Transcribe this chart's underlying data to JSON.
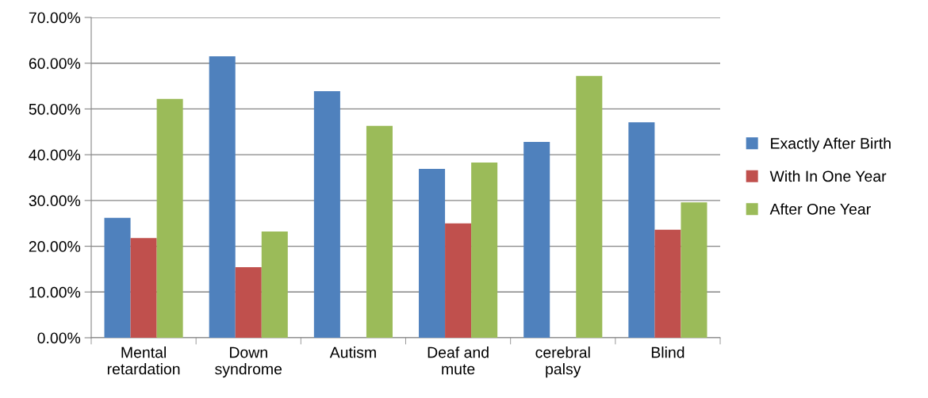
{
  "chart_data": {
    "type": "bar",
    "categories": [
      "Mental\nretardation",
      "Down\nsyndrome",
      "Autism",
      "Deaf and\nmute",
      "cerebral\npalsy",
      "Blind"
    ],
    "series": [
      {
        "name": "Exactly After Birth",
        "color": "#4f81bd",
        "values": [
          26.2,
          61.5,
          53.9,
          36.9,
          42.8,
          47.1
        ]
      },
      {
        "name": "With In One Year",
        "color": "#c0504d",
        "values": [
          21.8,
          15.4,
          0,
          25.0,
          0,
          23.6
        ]
      },
      {
        "name": "After One Year",
        "color": "#9bbb59",
        "values": [
          52.2,
          23.2,
          46.3,
          38.3,
          57.2,
          29.6
        ]
      }
    ],
    "ylim": [
      0,
      70
    ],
    "yticks": [
      {
        "value": 0,
        "label": "0.00%"
      },
      {
        "value": 10,
        "label": "10.00%"
      },
      {
        "value": 20,
        "label": "20.00%"
      },
      {
        "value": 30,
        "label": "30.00%"
      },
      {
        "value": 40,
        "label": "40.00%"
      },
      {
        "value": 50,
        "label": "50.00%"
      },
      {
        "value": 60,
        "label": "60.00%"
      },
      {
        "value": 70,
        "label": "70.00%"
      }
    ],
    "grid": "y",
    "legend": "right"
  }
}
